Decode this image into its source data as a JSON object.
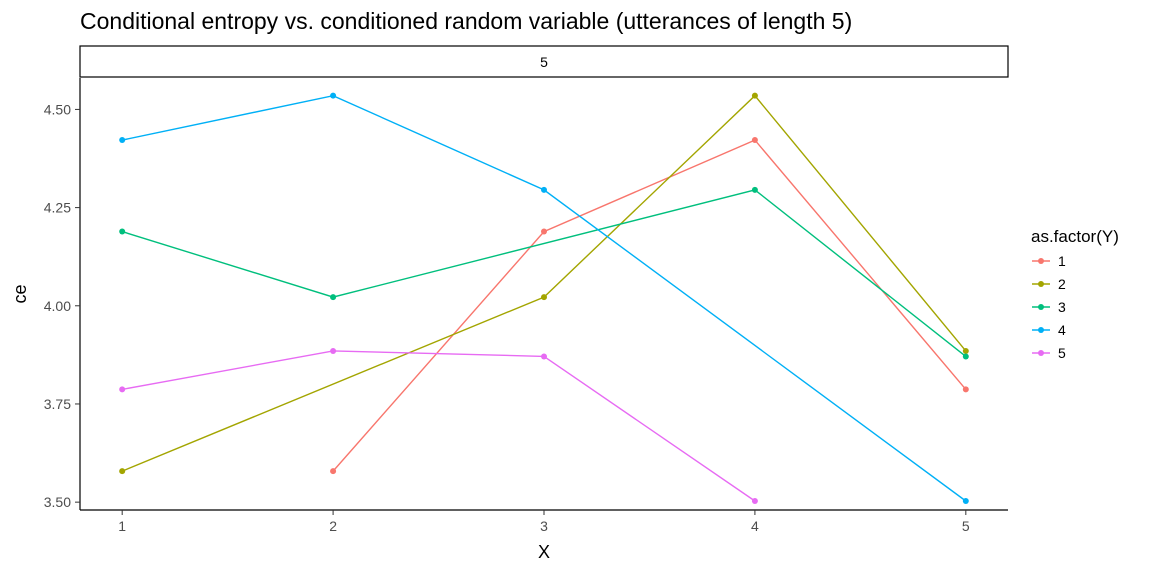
{
  "chart_data": {
    "type": "line",
    "title": "Conditional entropy vs. conditioned random variable (utterances of length 5)",
    "facet_label": "5",
    "xlabel": "X",
    "ylabel": "ce",
    "xlim": [
      0.8,
      5.2
    ],
    "ylim": [
      3.48,
      4.58
    ],
    "xticks": [
      1,
      2,
      3,
      4,
      5
    ],
    "yticks": [
      3.5,
      3.75,
      4.0,
      4.25,
      4.5
    ],
    "ytick_labels": [
      "3.50",
      "3.75",
      "4.00",
      "4.25",
      "4.50"
    ],
    "grid": false,
    "legend_title": "as.factor(Y)",
    "legend_position": "right",
    "series": [
      {
        "name": "1",
        "color": "#F8766D",
        "points": [
          [
            2,
            3.579
          ],
          [
            3,
            4.189
          ],
          [
            4,
            4.422
          ],
          [
            5,
            3.787
          ]
        ]
      },
      {
        "name": "2",
        "color": "#A3A500",
        "points": [
          [
            1,
            3.579
          ],
          [
            3,
            4.022
          ],
          [
            4,
            4.535
          ],
          [
            5,
            3.885
          ]
        ]
      },
      {
        "name": "3",
        "color": "#00BF7D",
        "points": [
          [
            1,
            4.189
          ],
          [
            2,
            4.022
          ],
          [
            4,
            4.295
          ],
          [
            5,
            3.871
          ]
        ]
      },
      {
        "name": "4",
        "color": "#00B0F6",
        "points": [
          [
            1,
            4.422
          ],
          [
            2,
            4.535
          ],
          [
            3,
            4.295
          ],
          [
            5,
            3.503
          ]
        ]
      },
      {
        "name": "5",
        "color": "#E76BF3",
        "points": [
          [
            1,
            3.787
          ],
          [
            2,
            3.885
          ],
          [
            3,
            3.871
          ],
          [
            4,
            3.503
          ]
        ]
      }
    ]
  }
}
